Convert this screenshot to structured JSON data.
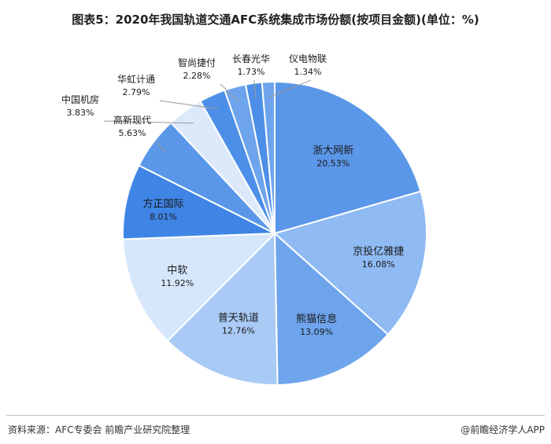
{
  "title": "图表5：2020年我国轨道交通AFC系统集成市场份额(按项目金额)(单位：%)",
  "source": "资料来源：AFC专委会 前瞻产业研究院整理",
  "brand": "@前瞻经济学人APP",
  "chart_data": {
    "type": "pie",
    "title": "图表5：2020年我国轨道交通AFC系统集成市场份额(按项目金额)(单位：%)",
    "unit": "%",
    "start": "12 o'clock, clockwise",
    "slices": [
      {
        "name": "浙大网新",
        "value": 20.53,
        "label": "20.53%",
        "color": "#5b97e8"
      },
      {
        "name": "京投亿雅捷",
        "value": 16.08,
        "label": "16.08%",
        "color": "#8fbaf3"
      },
      {
        "name": "熊猫信息",
        "value": 13.09,
        "label": "13.09%",
        "color": "#6ea4ec"
      },
      {
        "name": "普天轨道",
        "value": 12.76,
        "label": "12.76%",
        "color": "#a9caf5"
      },
      {
        "name": "中软",
        "value": 11.92,
        "label": "11.92%",
        "color": "#d6e6fb"
      },
      {
        "name": "方正国际",
        "value": 8.01,
        "label": "8.01%",
        "color": "#3f85e6"
      },
      {
        "name": "高新现代",
        "value": 5.63,
        "label": "5.63%",
        "color": "#5b97e8"
      },
      {
        "name": "中国机房",
        "value": 3.83,
        "label": "3.83%",
        "color": "#dce9fb"
      },
      {
        "name": "华虹计通",
        "value": 2.79,
        "label": "2.79%",
        "color": "#4d8fe8"
      },
      {
        "name": "智尚捷付",
        "value": 2.28,
        "label": "2.28%",
        "color": "#6ea4ec"
      },
      {
        "name": "长春光华",
        "value": 1.73,
        "label": "1.73%",
        "color": "#4d8fe8"
      },
      {
        "name": "仪电物联",
        "value": 1.34,
        "label": "1.34%",
        "color": "#6ea4ec"
      }
    ]
  }
}
